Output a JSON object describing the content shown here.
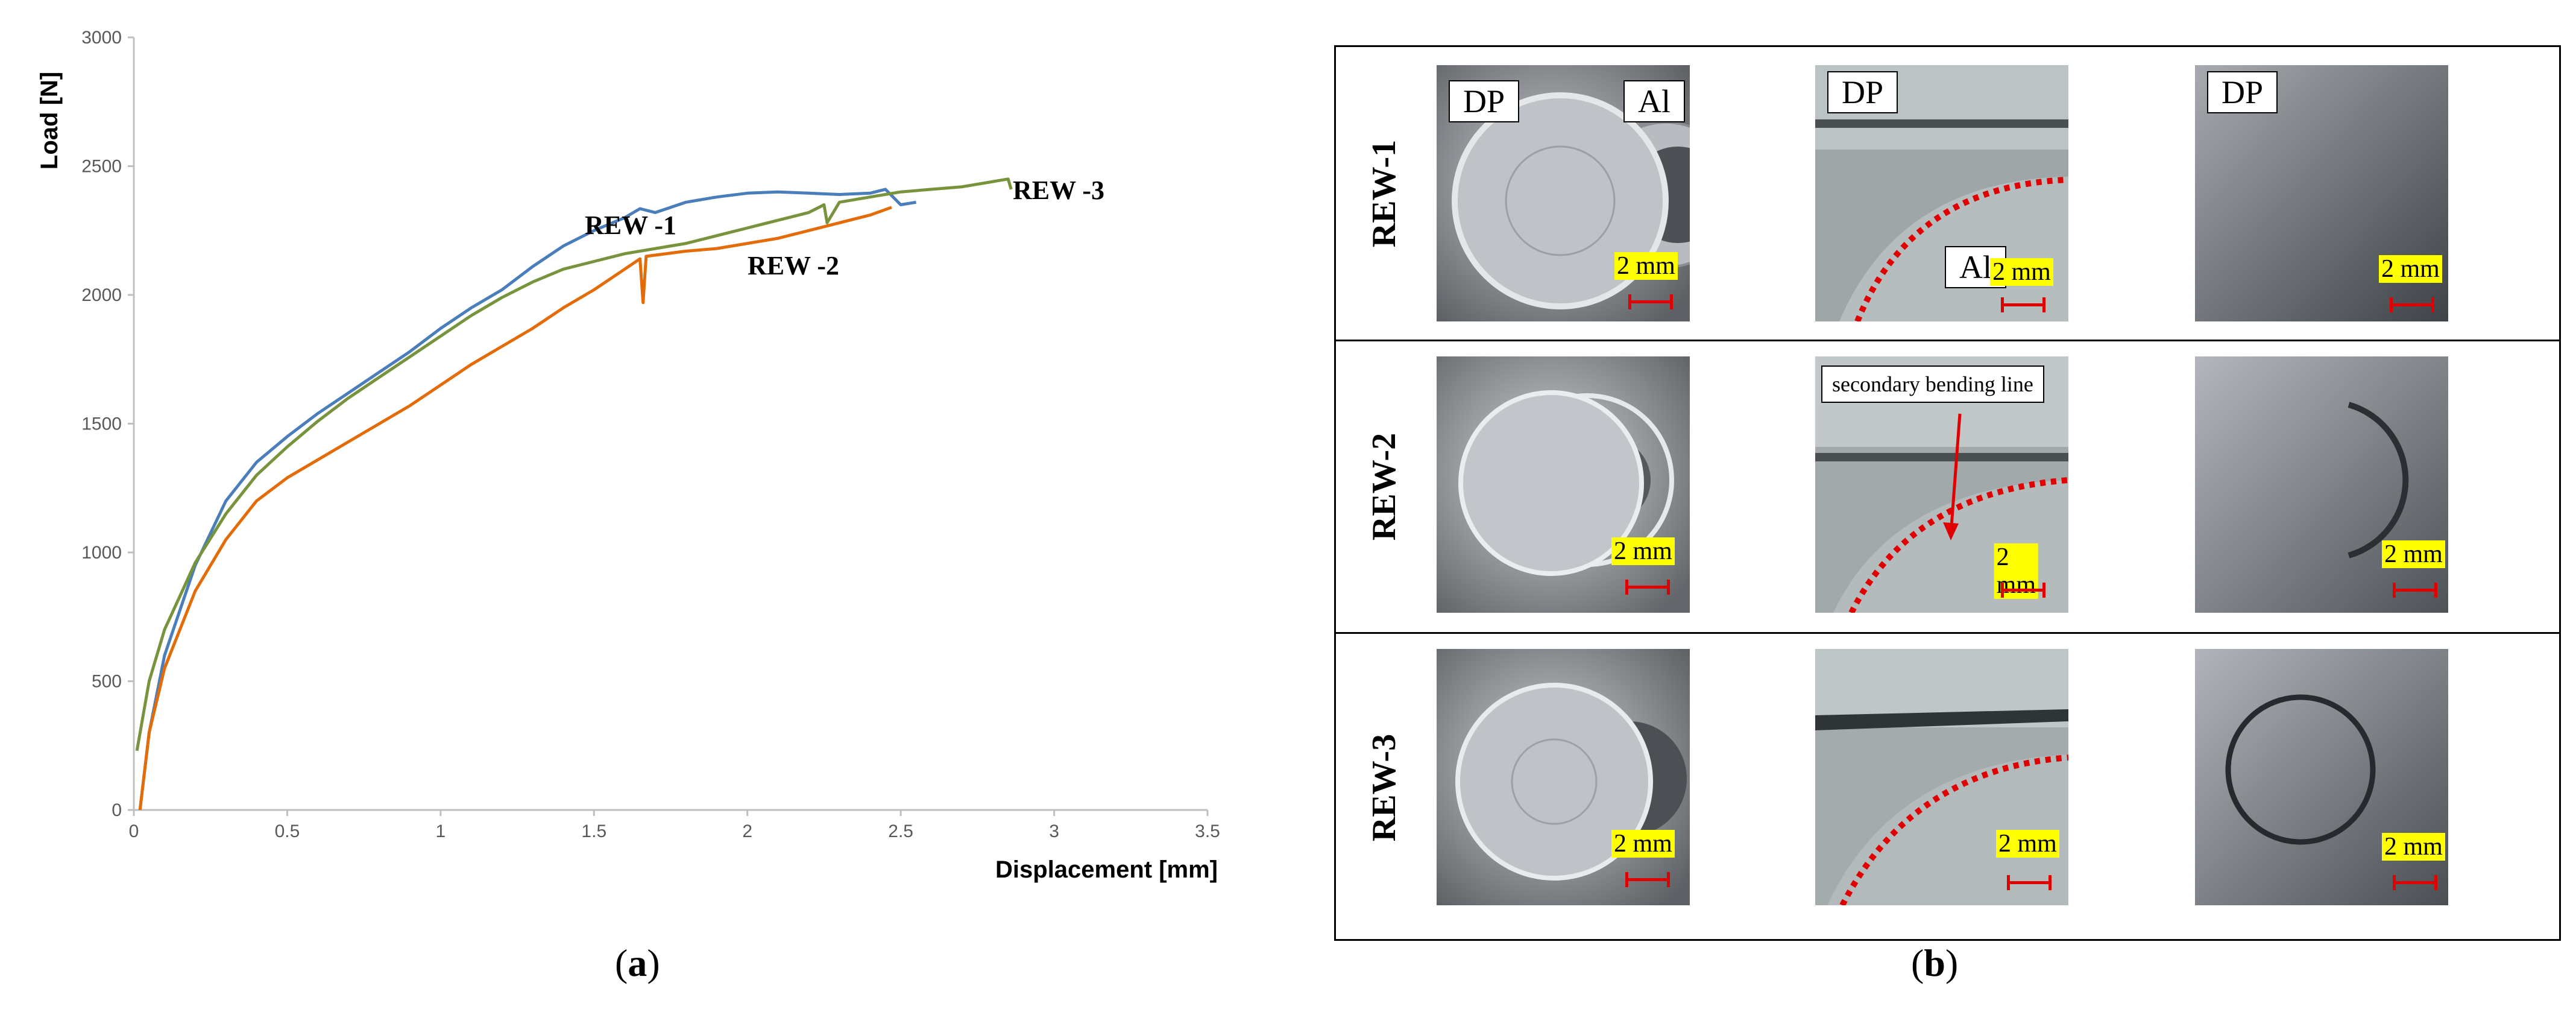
{
  "chart_data": {
    "type": "line",
    "xlabel": "Displacement [mm]",
    "ylabel": "Load [N]",
    "xlim": [
      0,
      3.5
    ],
    "ylim": [
      0,
      3000
    ],
    "x_ticks": [
      "0",
      "0.5",
      "1",
      "1.5",
      "2",
      "2.5",
      "3",
      "3.5"
    ],
    "y_ticks": [
      "0",
      "500",
      "1000",
      "1500",
      "2000",
      "2500",
      "3000"
    ],
    "grid": false,
    "legend": "none",
    "series": [
      {
        "name": "REW -1",
        "color": "#4a7ebb",
        "points": [
          [
            0.02,
            0
          ],
          [
            0.05,
            300
          ],
          [
            0.1,
            600
          ],
          [
            0.2,
            950
          ],
          [
            0.3,
            1200
          ],
          [
            0.4,
            1350
          ],
          [
            0.5,
            1450
          ],
          [
            0.6,
            1540
          ],
          [
            0.7,
            1620
          ],
          [
            0.8,
            1700
          ],
          [
            0.9,
            1780
          ],
          [
            1.0,
            1870
          ],
          [
            1.1,
            1950
          ],
          [
            1.2,
            2020
          ],
          [
            1.3,
            2110
          ],
          [
            1.4,
            2190
          ],
          [
            1.5,
            2250
          ],
          [
            1.6,
            2300
          ],
          [
            1.65,
            2335
          ],
          [
            1.7,
            2320
          ],
          [
            1.8,
            2360
          ],
          [
            1.9,
            2380
          ],
          [
            2.0,
            2395
          ],
          [
            2.1,
            2400
          ],
          [
            2.2,
            2395
          ],
          [
            2.3,
            2390
          ],
          [
            2.4,
            2395
          ],
          [
            2.45,
            2410
          ],
          [
            2.5,
            2350
          ],
          [
            2.55,
            2360
          ]
        ]
      },
      {
        "name": "REW -2",
        "color": "#e36c09",
        "points": [
          [
            0.02,
            0
          ],
          [
            0.05,
            300
          ],
          [
            0.1,
            550
          ],
          [
            0.2,
            850
          ],
          [
            0.3,
            1050
          ],
          [
            0.4,
            1200
          ],
          [
            0.5,
            1290
          ],
          [
            0.6,
            1360
          ],
          [
            0.7,
            1430
          ],
          [
            0.8,
            1500
          ],
          [
            0.9,
            1570
          ],
          [
            1.0,
            1650
          ],
          [
            1.1,
            1730
          ],
          [
            1.2,
            1800
          ],
          [
            1.3,
            1870
          ],
          [
            1.4,
            1950
          ],
          [
            1.5,
            2020
          ],
          [
            1.6,
            2100
          ],
          [
            1.65,
            2140
          ],
          [
            1.66,
            1970
          ],
          [
            1.67,
            2150
          ],
          [
            1.8,
            2170
          ],
          [
            1.9,
            2180
          ],
          [
            2.0,
            2200
          ],
          [
            2.1,
            2220
          ],
          [
            2.2,
            2250
          ],
          [
            2.3,
            2280
          ],
          [
            2.4,
            2310
          ],
          [
            2.47,
            2340
          ]
        ]
      },
      {
        "name": "REW -3",
        "color": "#77933c",
        "points": [
          [
            0.01,
            230
          ],
          [
            0.05,
            500
          ],
          [
            0.1,
            700
          ],
          [
            0.2,
            960
          ],
          [
            0.3,
            1150
          ],
          [
            0.4,
            1300
          ],
          [
            0.5,
            1410
          ],
          [
            0.6,
            1510
          ],
          [
            0.7,
            1600
          ],
          [
            0.8,
            1680
          ],
          [
            0.9,
            1760
          ],
          [
            1.0,
            1840
          ],
          [
            1.1,
            1920
          ],
          [
            1.2,
            1990
          ],
          [
            1.3,
            2050
          ],
          [
            1.4,
            2100
          ],
          [
            1.5,
            2130
          ],
          [
            1.6,
            2160
          ],
          [
            1.7,
            2180
          ],
          [
            1.8,
            2200
          ],
          [
            1.9,
            2230
          ],
          [
            2.0,
            2260
          ],
          [
            2.1,
            2290
          ],
          [
            2.2,
            2320
          ],
          [
            2.25,
            2350
          ],
          [
            2.26,
            2280
          ],
          [
            2.3,
            2360
          ],
          [
            2.4,
            2380
          ],
          [
            2.5,
            2400
          ],
          [
            2.6,
            2410
          ],
          [
            2.7,
            2420
          ],
          [
            2.8,
            2440
          ],
          [
            2.85,
            2450
          ],
          [
            2.86,
            2410
          ]
        ]
      }
    ],
    "annotations": [
      "REW -1",
      "REW -2",
      "REW -3"
    ]
  },
  "captions": {
    "a": "a",
    "b": "b"
  },
  "panel_b": {
    "rows": [
      {
        "label": "REW-1",
        "cells": [
          {
            "tags": [
              "DP",
              "Al"
            ],
            "scale": "2 mm"
          },
          {
            "tags": [
              "DP",
              "Al"
            ],
            "scale": "2 mm"
          },
          {
            "tags": [
              "DP"
            ],
            "scale": "2 mm"
          }
        ]
      },
      {
        "label": "REW-2",
        "cells": [
          {
            "tags": [],
            "scale": "2 mm"
          },
          {
            "tags": [],
            "scale": "2 mm",
            "callout": "secondary bending line"
          },
          {
            "tags": [],
            "scale": "2 mm"
          }
        ]
      },
      {
        "label": "REW-3",
        "cells": [
          {
            "tags": [],
            "scale": "2 mm"
          },
          {
            "tags": [],
            "scale": "2 mm"
          },
          {
            "tags": [],
            "scale": "2 mm"
          }
        ]
      }
    ],
    "colors": {
      "fusion_line": "#e00000",
      "scale_label_bg": "#ffff00"
    }
  }
}
